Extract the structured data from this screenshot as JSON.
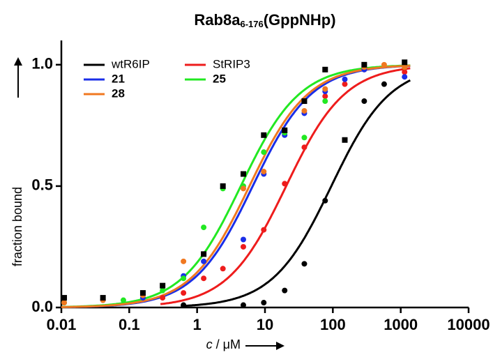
{
  "chart_data": {
    "type": "scatter",
    "title": [
      "Rab8a",
      "6-176",
      "(GppNHp)"
    ],
    "x_label": [
      "c",
      " / μM"
    ],
    "y_label": "fraction bound",
    "x_scale": "log",
    "xlim": [
      0.01,
      10000
    ],
    "xticks": [
      0.01,
      0.1,
      1,
      10,
      100,
      1000,
      10000
    ],
    "ylim": [
      0,
      1.1
    ],
    "yticks": [
      {
        "value": 0,
        "label": "0.0"
      },
      {
        "value": 0.5,
        "label": "0.5"
      },
      {
        "value": 1,
        "label": "1.0"
      }
    ],
    "legend": "upper left",
    "series": [
      {
        "name": "wtR6IP",
        "color": "#000000",
        "marker": "circle",
        "x": [
          0.63,
          4.8,
          9.6,
          19.5,
          38,
          77,
          290,
          570
        ],
        "values": [
          0.01,
          0.01,
          0.02,
          0.07,
          0.18,
          0.44,
          0.85,
          0.92
        ],
        "fit": {
          "ec50": 95,
          "hill": 1
        }
      },
      {
        "name": "StRIP3",
        "color": "#ee1c1c",
        "marker": "circle",
        "x": [
          0.31,
          0.63,
          1.25,
          2.4,
          4.8,
          9.6,
          19.5,
          38,
          77,
          150,
          290,
          1140
        ],
        "values": [
          0.04,
          0.06,
          0.12,
          0.16,
          0.25,
          0.32,
          0.51,
          0.66,
          0.87,
          0.92,
          0.98,
          0.97
        ],
        "fit": {
          "ec50": 20.5,
          "hill": 1
        }
      },
      {
        "name": "21",
        "color": "#1a2ee8",
        "marker": "circle",
        "x": [
          0.011,
          0.041,
          0.159,
          0.63,
          1.25,
          4.8,
          9.6,
          19.5,
          38,
          77,
          150,
          290,
          1140
        ],
        "values": [
          0.02,
          0.03,
          0.04,
          0.13,
          0.19,
          0.28,
          0.55,
          0.71,
          0.8,
          0.89,
          0.94,
          0.98,
          0.95
        ],
        "fit": {
          "ec50": 6.6,
          "hill": 1
        }
      },
      {
        "name": "25",
        "color": "#22e822",
        "marker": "circle",
        "x": [
          0.011,
          0.082,
          0.31,
          0.63,
          1.25,
          2.4,
          4.8,
          9.6,
          19.5,
          38,
          77,
          290,
          1140
        ],
        "values": [
          0.02,
          0.03,
          0.07,
          0.12,
          0.33,
          0.49,
          0.5,
          0.64,
          0.72,
          0.7,
          0.85,
          1.0,
          0.99
        ],
        "fit": {
          "ec50": 4.4,
          "hill": 1
        }
      },
      {
        "name": "28",
        "color": "#f07820",
        "marker": "circle",
        "x": [
          0.011,
          0.041,
          0.159,
          0.63,
          1.25,
          4.8,
          9.6,
          19.5,
          38,
          77,
          290,
          570,
          1140
        ],
        "values": [
          0.02,
          0.03,
          0.05,
          0.19,
          0.22,
          0.49,
          0.56,
          0.73,
          0.81,
          0.9,
          0.99,
          1.0,
          0.99
        ],
        "fit": {
          "ec50": 5.9,
          "hill": 1
        }
      },
      {
        "color": "#000000",
        "marker": "square",
        "x": [
          0.011,
          0.041,
          0.159,
          0.31,
          1.25,
          2.4,
          4.8,
          9.6,
          19.5,
          38,
          77,
          150,
          290,
          1140
        ],
        "values": [
          0.04,
          0.04,
          0.06,
          0.09,
          0.22,
          0.5,
          0.55,
          0.71,
          0.73,
          0.85,
          0.98,
          0.69,
          1.0,
          1.01
        ]
      }
    ]
  }
}
